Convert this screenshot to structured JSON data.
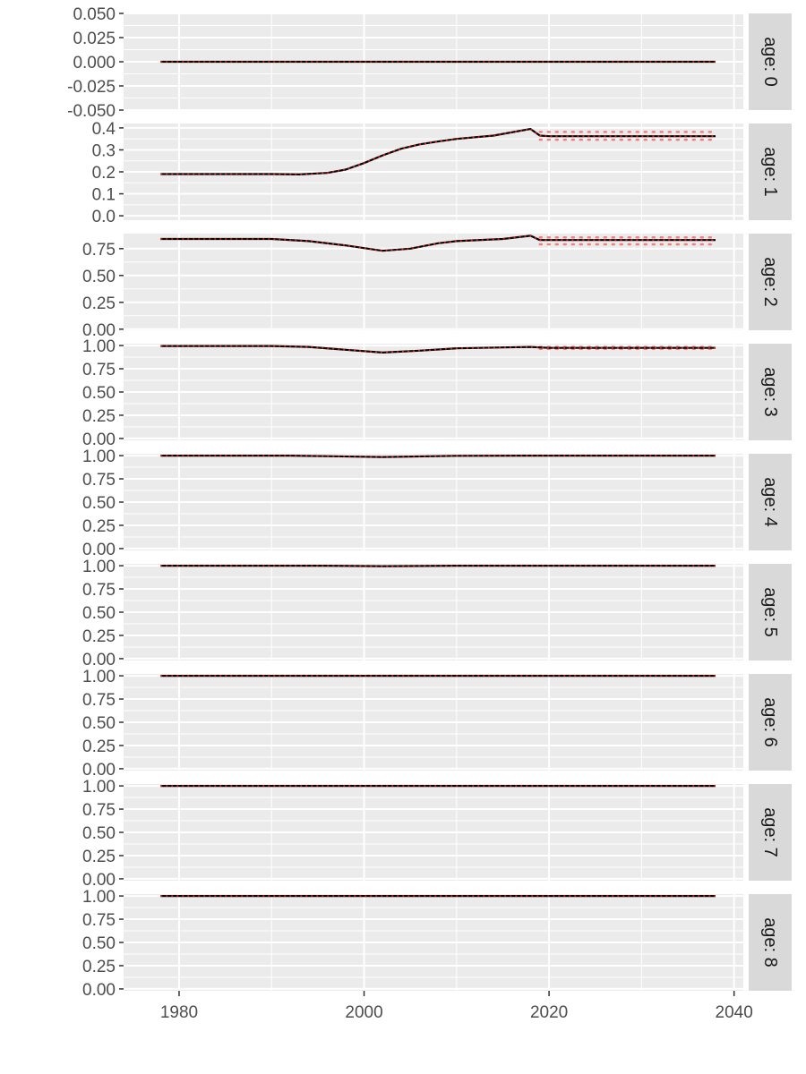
{
  "chart_data": {
    "type": "line",
    "layout": "faceted-vertical",
    "title": "",
    "xlabel": "",
    "ylabel": "",
    "xlim": [
      1974,
      2041
    ],
    "x_ticks": [
      1980,
      2000,
      2020,
      2040
    ],
    "grid": true,
    "colors": {
      "panel_bg": "#ebebeb",
      "grid": "#ffffff",
      "strip_bg": "#d9d9d9",
      "median_line": "#000000",
      "ribbon_line": "#f08080",
      "median_overlay": "#e41a1c"
    },
    "series_styles": {
      "median": "solid",
      "interval": "dotted",
      "overlay": "dotted"
    },
    "facets": [
      {
        "label": "age: 0",
        "ylim": [
          -0.05,
          0.05
        ],
        "y_ticks": [
          -0.05,
          -0.025,
          0,
          0.025,
          0.05
        ],
        "y_tick_labels": [
          "-0.050",
          "-0.025",
          "0.000",
          "0.025",
          "0.050"
        ],
        "x": [
          1978,
          2018,
          2038
        ],
        "median": [
          0,
          0,
          0
        ],
        "interval_start": 2019,
        "upper": 0.0,
        "lower": 0.0
      },
      {
        "label": "age: 1",
        "ylim": [
          -0.02,
          0.42
        ],
        "y_ticks": [
          0,
          0.1,
          0.2,
          0.3,
          0.4
        ],
        "y_tick_labels": [
          "0.0",
          "0.1",
          "0.2",
          "0.3",
          "0.4"
        ],
        "x": [
          1978,
          1985,
          1990,
          1993,
          1996,
          1998,
          2000,
          2002,
          2004,
          2006,
          2008,
          2010,
          2014,
          2018,
          2019,
          2020,
          2025,
          2030,
          2038
        ],
        "median": [
          0.19,
          0.19,
          0.19,
          0.188,
          0.195,
          0.21,
          0.24,
          0.275,
          0.305,
          0.325,
          0.338,
          0.35,
          0.365,
          0.395,
          0.365,
          0.362,
          0.362,
          0.362,
          0.362
        ],
        "interval_start": 2019,
        "upper": 0.382,
        "lower": 0.346
      },
      {
        "label": "age: 2",
        "ylim": [
          -0.01,
          0.89
        ],
        "y_ticks": [
          0,
          0.25,
          0.5,
          0.75
        ],
        "y_tick_labels": [
          "0.00",
          "0.25",
          "0.50",
          "0.75"
        ],
        "x": [
          1978,
          1985,
          1990,
          1994,
          1998,
          2002,
          2005,
          2008,
          2010,
          2015,
          2018,
          2019,
          2025,
          2030,
          2038
        ],
        "median": [
          0.84,
          0.84,
          0.84,
          0.82,
          0.78,
          0.73,
          0.75,
          0.8,
          0.82,
          0.84,
          0.87,
          0.83,
          0.83,
          0.83,
          0.83
        ],
        "interval_start": 2019,
        "upper": 0.855,
        "lower": 0.79
      },
      {
        "label": "age: 3",
        "ylim": [
          -0.02,
          1.02
        ],
        "y_ticks": [
          0,
          0.25,
          0.5,
          0.75,
          1
        ],
        "y_tick_labels": [
          "0.00",
          "0.25",
          "0.50",
          "0.75",
          "1.00"
        ],
        "x": [
          1978,
          1990,
          1994,
          1998,
          2002,
          2006,
          2010,
          2015,
          2018,
          2020,
          2038
        ],
        "median": [
          0.995,
          0.995,
          0.985,
          0.955,
          0.925,
          0.945,
          0.97,
          0.98,
          0.985,
          0.975,
          0.975
        ],
        "interval_start": 2019,
        "upper": 0.985,
        "lower": 0.965
      },
      {
        "label": "age: 4",
        "ylim": [
          -0.02,
          1.02
        ],
        "y_ticks": [
          0,
          0.25,
          0.5,
          0.75,
          1
        ],
        "y_tick_labels": [
          "0.00",
          "0.25",
          "0.50",
          "0.75",
          "1.00"
        ],
        "x": [
          1978,
          1992,
          2002,
          2010,
          2018,
          2038
        ],
        "median": [
          1.0,
          1.0,
          0.985,
          0.998,
          1.0,
          1.0
        ],
        "interval_start": 2019,
        "upper": 1.0,
        "lower": 1.0
      },
      {
        "label": "age: 5",
        "ylim": [
          -0.02,
          1.02
        ],
        "y_ticks": [
          0,
          0.25,
          0.5,
          0.75,
          1
        ],
        "y_tick_labels": [
          "0.00",
          "0.25",
          "0.50",
          "0.75",
          "1.00"
        ],
        "x": [
          1978,
          1995,
          2002,
          2010,
          2038
        ],
        "median": [
          1.0,
          1.0,
          0.995,
          1.0,
          1.0
        ],
        "interval_start": 2019,
        "upper": 1.0,
        "lower": 1.0
      },
      {
        "label": "age: 6",
        "ylim": [
          -0.02,
          1.02
        ],
        "y_ticks": [
          0,
          0.25,
          0.5,
          0.75,
          1
        ],
        "y_tick_labels": [
          "0.00",
          "0.25",
          "0.50",
          "0.75",
          "1.00"
        ],
        "x": [
          1978,
          2038
        ],
        "median": [
          1.0,
          1.0
        ],
        "interval_start": 2019,
        "upper": 1.0,
        "lower": 1.0
      },
      {
        "label": "age: 7",
        "ylim": [
          -0.02,
          1.02
        ],
        "y_ticks": [
          0,
          0.25,
          0.5,
          0.75,
          1
        ],
        "y_tick_labels": [
          "0.00",
          "0.25",
          "0.50",
          "0.75",
          "1.00"
        ],
        "x": [
          1978,
          2038
        ],
        "median": [
          1.0,
          1.0
        ],
        "interval_start": 2019,
        "upper": 1.0,
        "lower": 1.0
      },
      {
        "label": "age: 8",
        "ylim": [
          -0.02,
          1.02
        ],
        "y_ticks": [
          0,
          0.25,
          0.5,
          0.75,
          1
        ],
        "y_tick_labels": [
          "0.00",
          "0.25",
          "0.50",
          "0.75",
          "1.00"
        ],
        "x": [
          1978,
          2038
        ],
        "median": [
          1.0,
          1.0
        ],
        "interval_start": 2019,
        "upper": 1.0,
        "lower": 1.0
      }
    ]
  }
}
